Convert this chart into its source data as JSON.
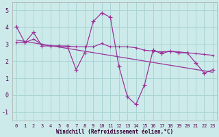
{
  "xlabel": "Windchill (Refroidissement éolien,°C)",
  "background_color": "#cceaea",
  "grid_color": "#aad4d4",
  "line_color": "#993399",
  "ylim": [
    -1.5,
    5.5
  ],
  "xlim": [
    -0.5,
    23.5
  ],
  "yticks": [
    -1,
    0,
    1,
    2,
    3,
    4,
    5
  ],
  "xticks": [
    0,
    1,
    2,
    3,
    4,
    5,
    6,
    7,
    8,
    9,
    10,
    11,
    12,
    13,
    14,
    15,
    16,
    17,
    18,
    19,
    20,
    21,
    22,
    23
  ],
  "series1_x": [
    0,
    1,
    2,
    3,
    4,
    5,
    6,
    7,
    8,
    9,
    10,
    11,
    12,
    13,
    14,
    15,
    16,
    17,
    18,
    19,
    20,
    21,
    22,
    23
  ],
  "series1_y": [
    4.05,
    3.1,
    3.7,
    2.9,
    2.9,
    2.9,
    2.85,
    1.5,
    2.5,
    4.35,
    4.85,
    4.6,
    1.7,
    -0.1,
    -0.55,
    0.6,
    2.65,
    2.45,
    2.6,
    2.5,
    2.5,
    1.9,
    1.3,
    1.5
  ],
  "series2_x": [
    0,
    23
  ],
  "series2_y": [
    3.25,
    1.35
  ],
  "series3_x": [
    0,
    1,
    2,
    3,
    4,
    5,
    6,
    7,
    8,
    9,
    10,
    11,
    12,
    13,
    14,
    15,
    16,
    17,
    18,
    19,
    20,
    21,
    22,
    23
  ],
  "series3_y": [
    3.1,
    3.1,
    3.3,
    3.0,
    2.9,
    2.9,
    2.9,
    2.85,
    2.85,
    2.85,
    3.05,
    2.85,
    2.85,
    2.85,
    2.8,
    2.65,
    2.6,
    2.55,
    2.6,
    2.55,
    2.5,
    2.45,
    2.4,
    2.35
  ]
}
